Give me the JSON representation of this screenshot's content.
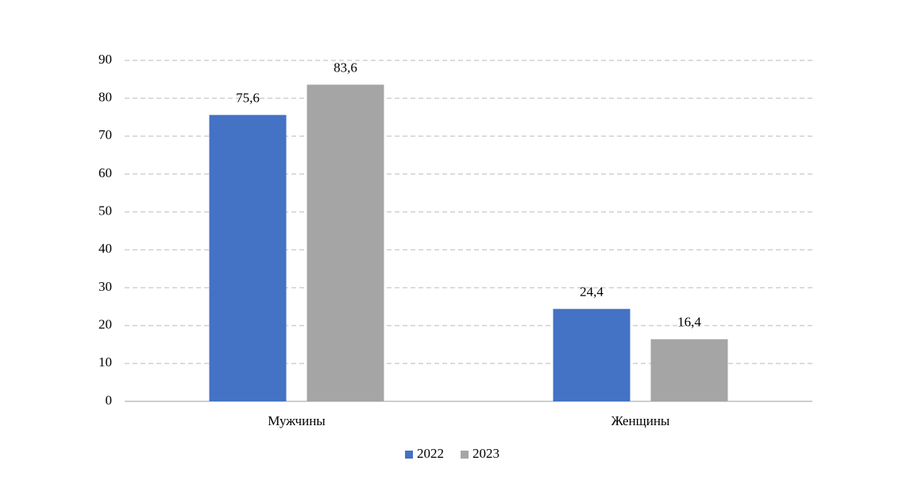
{
  "chart_data": {
    "type": "bar",
    "categories": [
      "Мужчины",
      "Женщины"
    ],
    "series": [
      {
        "name": "2022",
        "color": "#4472c4",
        "values": [
          75.6,
          24.4
        ],
        "value_labels": [
          "75,6",
          "24,4"
        ]
      },
      {
        "name": "2023",
        "color": "#a5a5a5",
        "values": [
          83.6,
          16.4
        ],
        "value_labels": [
          "83,6",
          "16,4"
        ]
      }
    ],
    "ylim": [
      0,
      90
    ],
    "yticks": [
      0,
      10,
      20,
      30,
      40,
      50,
      60,
      70,
      80,
      90
    ],
    "grid": true,
    "legend": "bottom"
  }
}
